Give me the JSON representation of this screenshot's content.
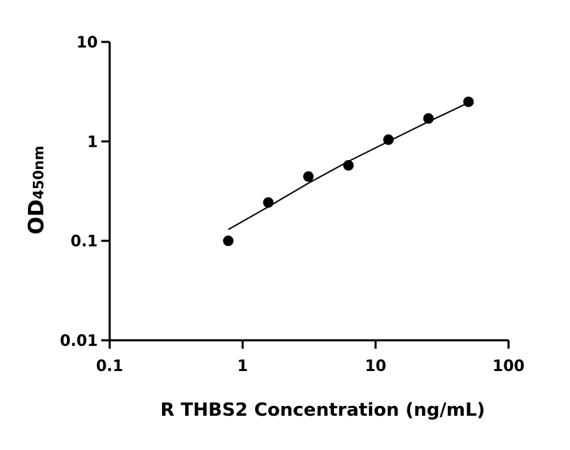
{
  "chart_data": {
    "type": "scatter",
    "x_label": "R THBS2 Concentration (ng/mL)",
    "y_label": {
      "main": "OD",
      "sub": "450nm"
    },
    "x": [
      0.78,
      1.56,
      3.125,
      6.25,
      12.5,
      25,
      50
    ],
    "values": [
      0.1,
      0.243,
      0.443,
      0.574,
      1.04,
      1.7,
      2.5
    ],
    "color": "#000000",
    "fit": {
      "x": [
        0.78,
        1.56,
        3.125,
        6.25,
        12.5,
        25,
        50
      ],
      "values": [
        0.13,
        0.22,
        0.38,
        0.63,
        1.0,
        1.58,
        2.45
      ]
    },
    "xlog": true,
    "ylog": true,
    "xlim": [
      0.1,
      100
    ],
    "xticks": [
      0.1,
      1,
      10,
      100
    ],
    "ylim": [
      0.01,
      10
    ],
    "yticks": [
      0.01,
      0.1,
      1,
      10
    ]
  }
}
